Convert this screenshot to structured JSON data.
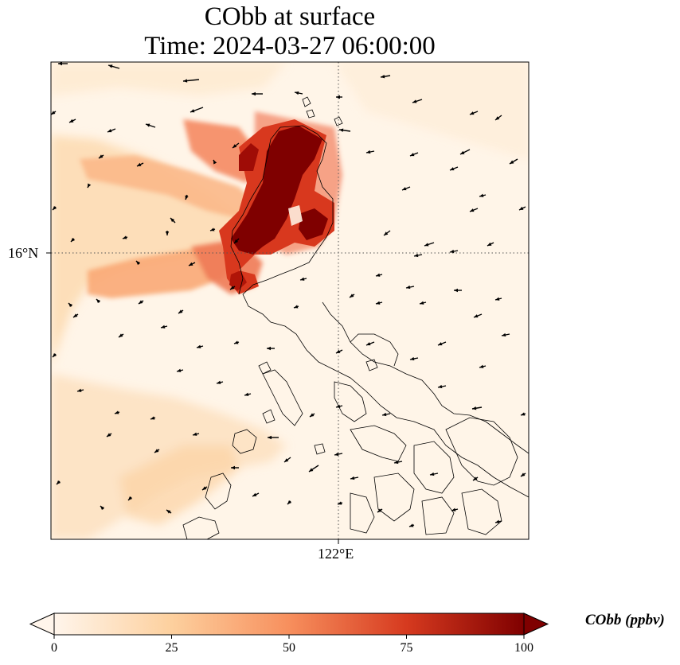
{
  "title": {
    "line1": "CObb at surface",
    "line2": "Time: 2024-03-27 06:00:00"
  },
  "axes": {
    "lat_label": "16°N",
    "lon_label": "122°E"
  },
  "colorbar": {
    "label": "CObb (ppbv)",
    "ticks": [
      "0",
      "25",
      "50",
      "75",
      "100"
    ],
    "tick_values": [
      0,
      25,
      50,
      75,
      100
    ],
    "min": 0,
    "max": 100,
    "extend": "both",
    "colors": [
      "#fff5eb",
      "#fdd09e",
      "#f78f5d",
      "#d63a1f",
      "#7f0000"
    ]
  },
  "map": {
    "colormap": "OrRd",
    "background_color": "#fff5e8",
    "plume_core_color": "#7f0000",
    "coastline_color": "#000000",
    "gridlines": "dotted",
    "wind_vectors": "black arrows, mostly toward west/southwest"
  }
}
